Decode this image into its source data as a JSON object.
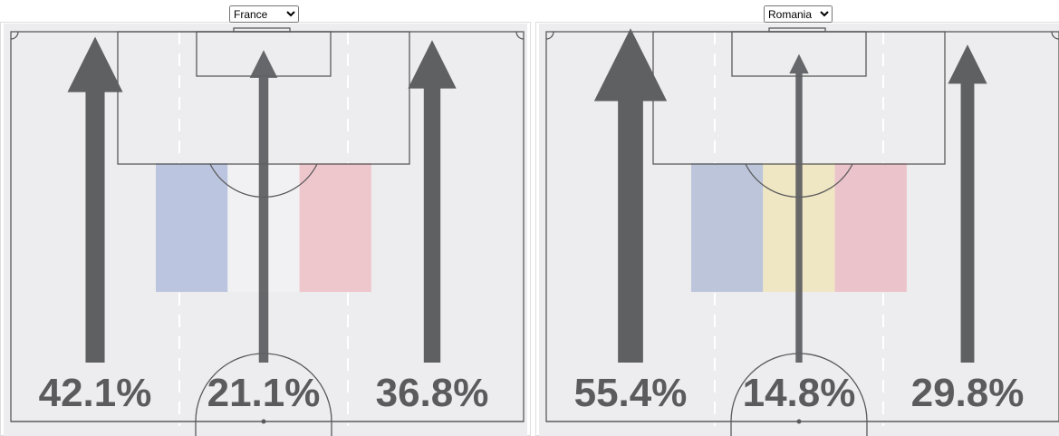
{
  "chart_data": [
    {
      "type": "arrows",
      "selection": "France",
      "values": [
        42.1,
        21.1,
        36.8
      ],
      "value_labels": [
        "42.1%",
        "21.1%",
        "36.8%"
      ],
      "color": "#5f6062",
      "flag_colors": [
        "#bcc5df",
        "#f1f1f3",
        "#eec7cd"
      ]
    },
    {
      "type": "arrows",
      "selection": "Romania",
      "values": [
        55.4,
        14.8,
        29.8
      ],
      "value_labels": [
        "55.4%",
        "14.8%",
        "29.8%"
      ],
      "color": "#5f6062",
      "flag_colors": [
        "#bcc5da",
        "#efe6c4",
        "#ebc4cb"
      ]
    }
  ]
}
